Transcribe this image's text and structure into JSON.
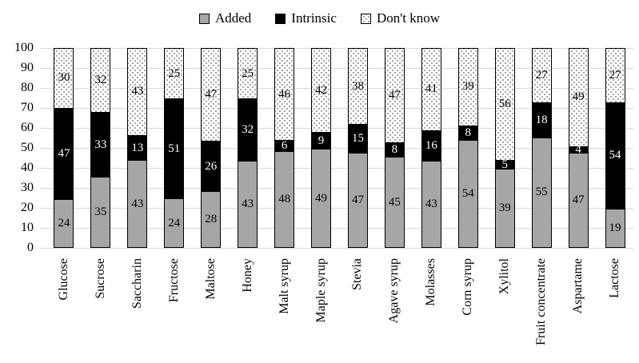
{
  "legend": {
    "items": [
      {
        "label": "Added",
        "swatch": "solid-gray",
        "icon": "gray-square-swatch"
      },
      {
        "label": "Intrinsic",
        "swatch": "solid-black",
        "icon": "black-square-swatch"
      },
      {
        "label": "Don't know",
        "swatch": "dotted",
        "icon": "dotted-square-swatch"
      }
    ]
  },
  "chart_data": {
    "type": "bar",
    "subtype": "stacked-vertical-100",
    "title": "",
    "xlabel": "",
    "ylabel": "",
    "categories": [
      "Glucose",
      "Sucrose",
      "Saccharin",
      "Fructose",
      "Maltose",
      "Honey",
      "Malt syrup",
      "Maple syrup",
      "Stevia",
      "Agave syrup",
      "Molasses",
      "Corn syrup",
      "Xylitol",
      "Fruit concentrate",
      "Aspartame",
      "Lactose"
    ],
    "series": [
      {
        "name": "Added",
        "fill": "solid",
        "color": "#a6a6a6",
        "label_color": "#000000",
        "values": [
          24,
          35,
          43,
          24,
          28,
          43,
          48,
          49,
          47,
          45,
          43,
          54,
          39,
          55,
          47,
          19
        ]
      },
      {
        "name": "Intrinsic",
        "fill": "solid",
        "color": "#000000",
        "label_color": "#ffffff",
        "values": [
          47,
          33,
          13,
          51,
          26,
          32,
          6,
          9,
          15,
          8,
          16,
          8,
          5,
          18,
          4,
          54
        ]
      },
      {
        "name": "Don't know",
        "fill": "dots",
        "color": "#ffffff",
        "label_color": "#000000",
        "values": [
          30,
          32,
          43,
          25,
          47,
          25,
          46,
          42,
          38,
          47,
          41,
          39,
          56,
          27,
          49,
          27
        ]
      }
    ],
    "ylim": [
      0,
      100
    ],
    "yticks": [
      0,
      10,
      20,
      30,
      40,
      50,
      60,
      70,
      80,
      90,
      100
    ],
    "grid": true,
    "legend_position": "top",
    "data_labels": true
  },
  "colors": {
    "gridline": "#d9d9d9",
    "bar_border": "#000000",
    "dot_pattern": "#8c8c8c",
    "background": "#ffffff"
  }
}
